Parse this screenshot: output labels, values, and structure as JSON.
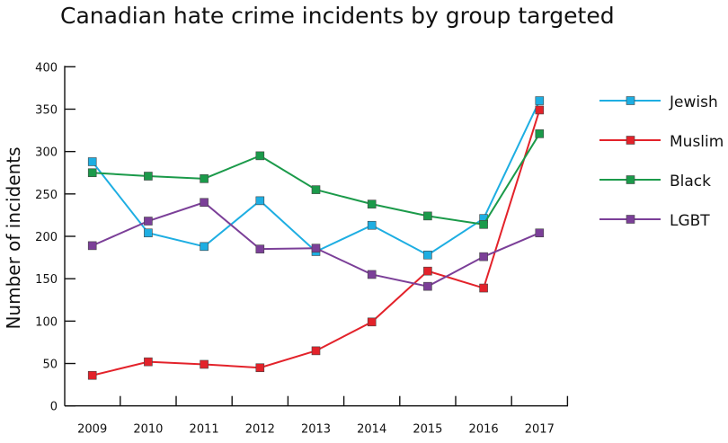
{
  "chart_data": {
    "type": "line",
    "title": "Canadian hate crime incidents by group targeted",
    "xlabel": "",
    "ylabel": "Number of incidents",
    "ylim": [
      0,
      400
    ],
    "yticks": [
      0,
      50,
      100,
      150,
      200,
      250,
      300,
      350,
      400
    ],
    "categories": [
      "2009",
      "2010",
      "2011",
      "2012",
      "2013",
      "2014",
      "2015",
      "2016",
      "2017"
    ],
    "grid": false,
    "legend_position": "right",
    "series": [
      {
        "name": "Jewish",
        "color": "#1eaee2",
        "values": [
          288,
          204,
          188,
          242,
          182,
          213,
          178,
          221,
          360
        ]
      },
      {
        "name": "Muslim",
        "color": "#e3222a",
        "values": [
          36,
          52,
          49,
          45,
          65,
          99,
          159,
          139,
          349
        ]
      },
      {
        "name": "Black",
        "color": "#1b9a4a",
        "values": [
          275,
          271,
          268,
          295,
          255,
          238,
          224,
          214,
          321
        ]
      },
      {
        "name": "LGBT",
        "color": "#7b3f98",
        "values": [
          189,
          218,
          240,
          185,
          186,
          155,
          141,
          176,
          204
        ]
      }
    ]
  }
}
